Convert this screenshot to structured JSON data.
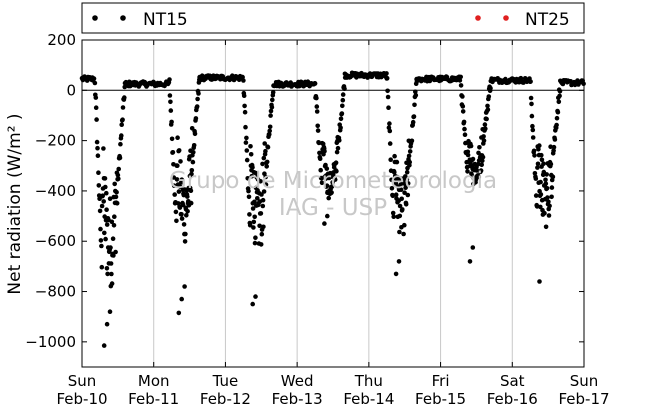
{
  "chart_data": {
    "type": "scatter",
    "title": "",
    "xlabel": "",
    "ylabel": "Net radiation (W/m² )",
    "ylim": [
      -1100,
      200
    ],
    "yticks": [
      200,
      0,
      -200,
      -400,
      -600,
      -800,
      -1000
    ],
    "x_range_days": [
      0,
      7
    ],
    "x_ticks": [
      {
        "day": "Sun",
        "date": "Feb-10"
      },
      {
        "day": "Mon",
        "date": "Feb-11"
      },
      {
        "day": "Tue",
        "date": "Feb-12"
      },
      {
        "day": "Wed",
        "date": "Feb-13"
      },
      {
        "day": "Thu",
        "date": "Feb-14"
      },
      {
        "day": "Fri",
        "date": "Feb-15"
      },
      {
        "day": "Sat",
        "date": "Feb-16"
      },
      {
        "day": "Sun",
        "date": "Feb-17"
      }
    ],
    "grid": "vertical",
    "legend": [
      "NT15",
      "NT25"
    ],
    "legend_placement": "top",
    "watermark": [
      "Grupo de Micrometeorologia",
      "IAG - USP"
    ],
    "colors": {
      "NT15": "#000000",
      "NT25": "#e02020"
    },
    "series": [
      {
        "name": "NT15",
        "days": [
          {
            "night": 45,
            "ramp": 0.18,
            "trough": -600,
            "spread": 380,
            "low_outliers": [
              -1015,
              -930,
              -880
            ]
          },
          {
            "night": 25,
            "ramp": 1.22,
            "trough": -470,
            "spread": 280,
            "low_outliers": [
              -885,
              -830,
              -780
            ]
          },
          {
            "night": 50,
            "ramp": 2.25,
            "trough": -500,
            "spread": 300,
            "low_outliers": [
              -850,
              -820
            ]
          },
          {
            "night": 25,
            "ramp": 3.25,
            "trough": -380,
            "spread": 110,
            "low_outliers": [
              -530,
              -500
            ]
          },
          {
            "night": 60,
            "ramp": 4.25,
            "trough": -470,
            "spread": 230,
            "low_outliers": [
              -730,
              -680
            ]
          },
          {
            "night": 45,
            "ramp": 5.28,
            "trough": -320,
            "spread": 140,
            "low_outliers": [
              -680,
              -625
            ]
          },
          {
            "night": 40,
            "ramp": 6.25,
            "trough": -420,
            "spread": 260,
            "low_outliers": [
              -760
            ]
          },
          {
            "night": 30,
            "ramp": 7.0,
            "trough": 0,
            "spread": 0,
            "low_outliers": []
          }
        ]
      },
      {
        "name": "NT25",
        "days": []
      }
    ]
  }
}
